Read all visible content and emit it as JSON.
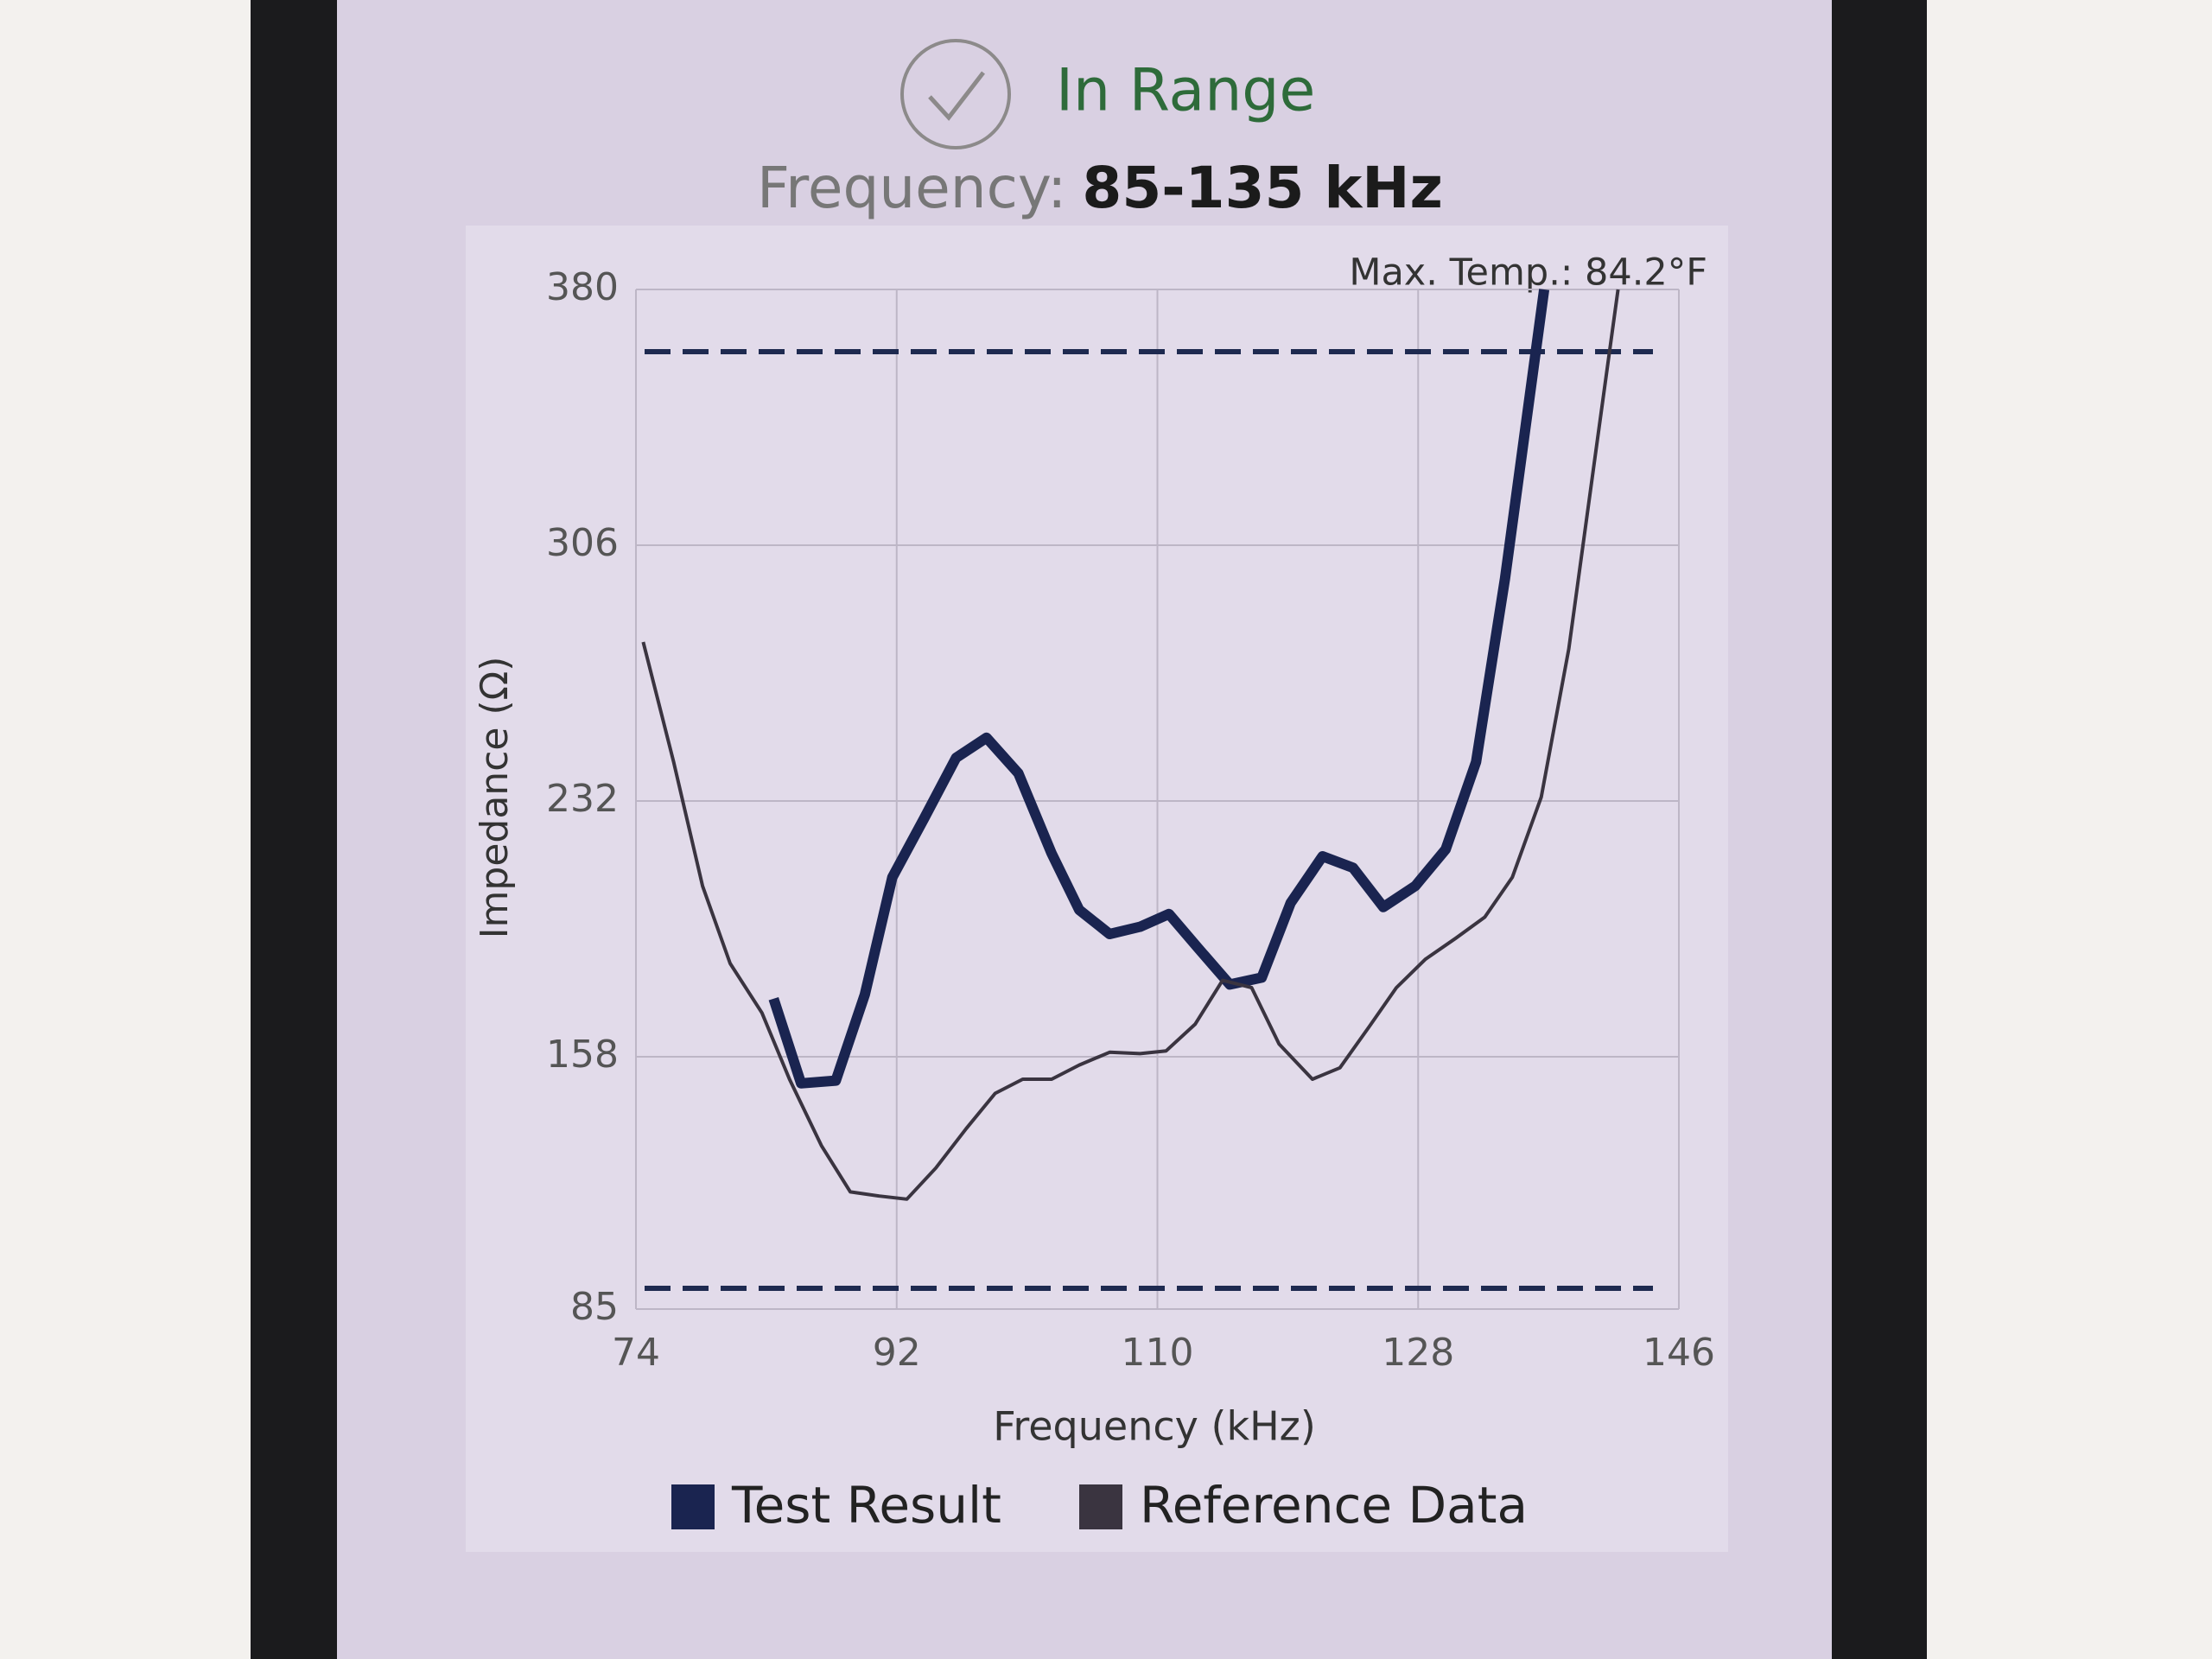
{
  "status": "In Range",
  "chart_data": {
    "type": "line",
    "title_label": "Frequency:",
    "title_value": "85-135 kHz",
    "annotation": "Max. Temp.: 84.2°F",
    "x_label": "Frequency (kHz)",
    "y_label": "Impedance (Ω)",
    "xlim": [
      74,
      146
    ],
    "xticks": [
      74,
      92,
      110,
      128,
      146
    ],
    "ylim": [
      85,
      380
    ],
    "yticks": [
      85,
      158,
      232,
      306,
      380
    ],
    "grid": true,
    "limit_lines": [
      362,
      91
    ],
    "limit_color": "#1e2a50",
    "series": [
      {
        "name": "Test Result",
        "color": "#1a2450",
        "x": [
          83.5,
          85.4,
          87.8,
          89.8,
          91.7,
          93.9,
          96.1,
          98.2,
          100.4,
          102.7,
          104.6,
          106.7,
          108.8,
          110.8,
          112.8,
          115.0,
          117.2,
          119.2,
          121.4,
          123.5,
          125.6,
          127.8,
          129.9,
          132.0,
          134.0,
          136.7
        ],
        "values": [
          174.8,
          150.3,
          151.1,
          176,
          209.9,
          227,
          244.5,
          250.3,
          240,
          216.8,
          200.5,
          193.5,
          195.6,
          199.3,
          189.5,
          178.9,
          180.9,
          202.5,
          216,
          212.7,
          201.3,
          207.4,
          218,
          243.3,
          296.4,
          380
        ]
      },
      {
        "name": "Reference Data",
        "color": "#3a3440",
        "x": [
          74.5,
          76.6,
          78.6,
          80.5,
          82.7,
          84.6,
          86.8,
          88.8,
          90.8,
          92.7,
          94.7,
          96.8,
          98.8,
          100.7,
          102.7,
          104.6,
          106.7,
          108.8,
          110.6,
          112.6,
          114.5,
          116.5,
          118.4,
          120.7,
          122.6,
          124.6,
          126.5,
          128.5,
          130.6,
          132.6,
          134.5,
          136.5,
          138.4,
          140.4,
          141.8
        ],
        "values": [
          278,
          243.3,
          207.4,
          185,
          170.7,
          151.5,
          132.3,
          118.9,
          117.7,
          116.8,
          125.8,
          137.2,
          147.4,
          151.5,
          151.5,
          155.6,
          159.3,
          158.9,
          159.7,
          167.4,
          180.1,
          178,
          161.7,
          151.5,
          154.8,
          166.6,
          178,
          186.2,
          192.3,
          198.4,
          209.9,
          233.1,
          276,
          337.2,
          380
        ]
      }
    ]
  }
}
